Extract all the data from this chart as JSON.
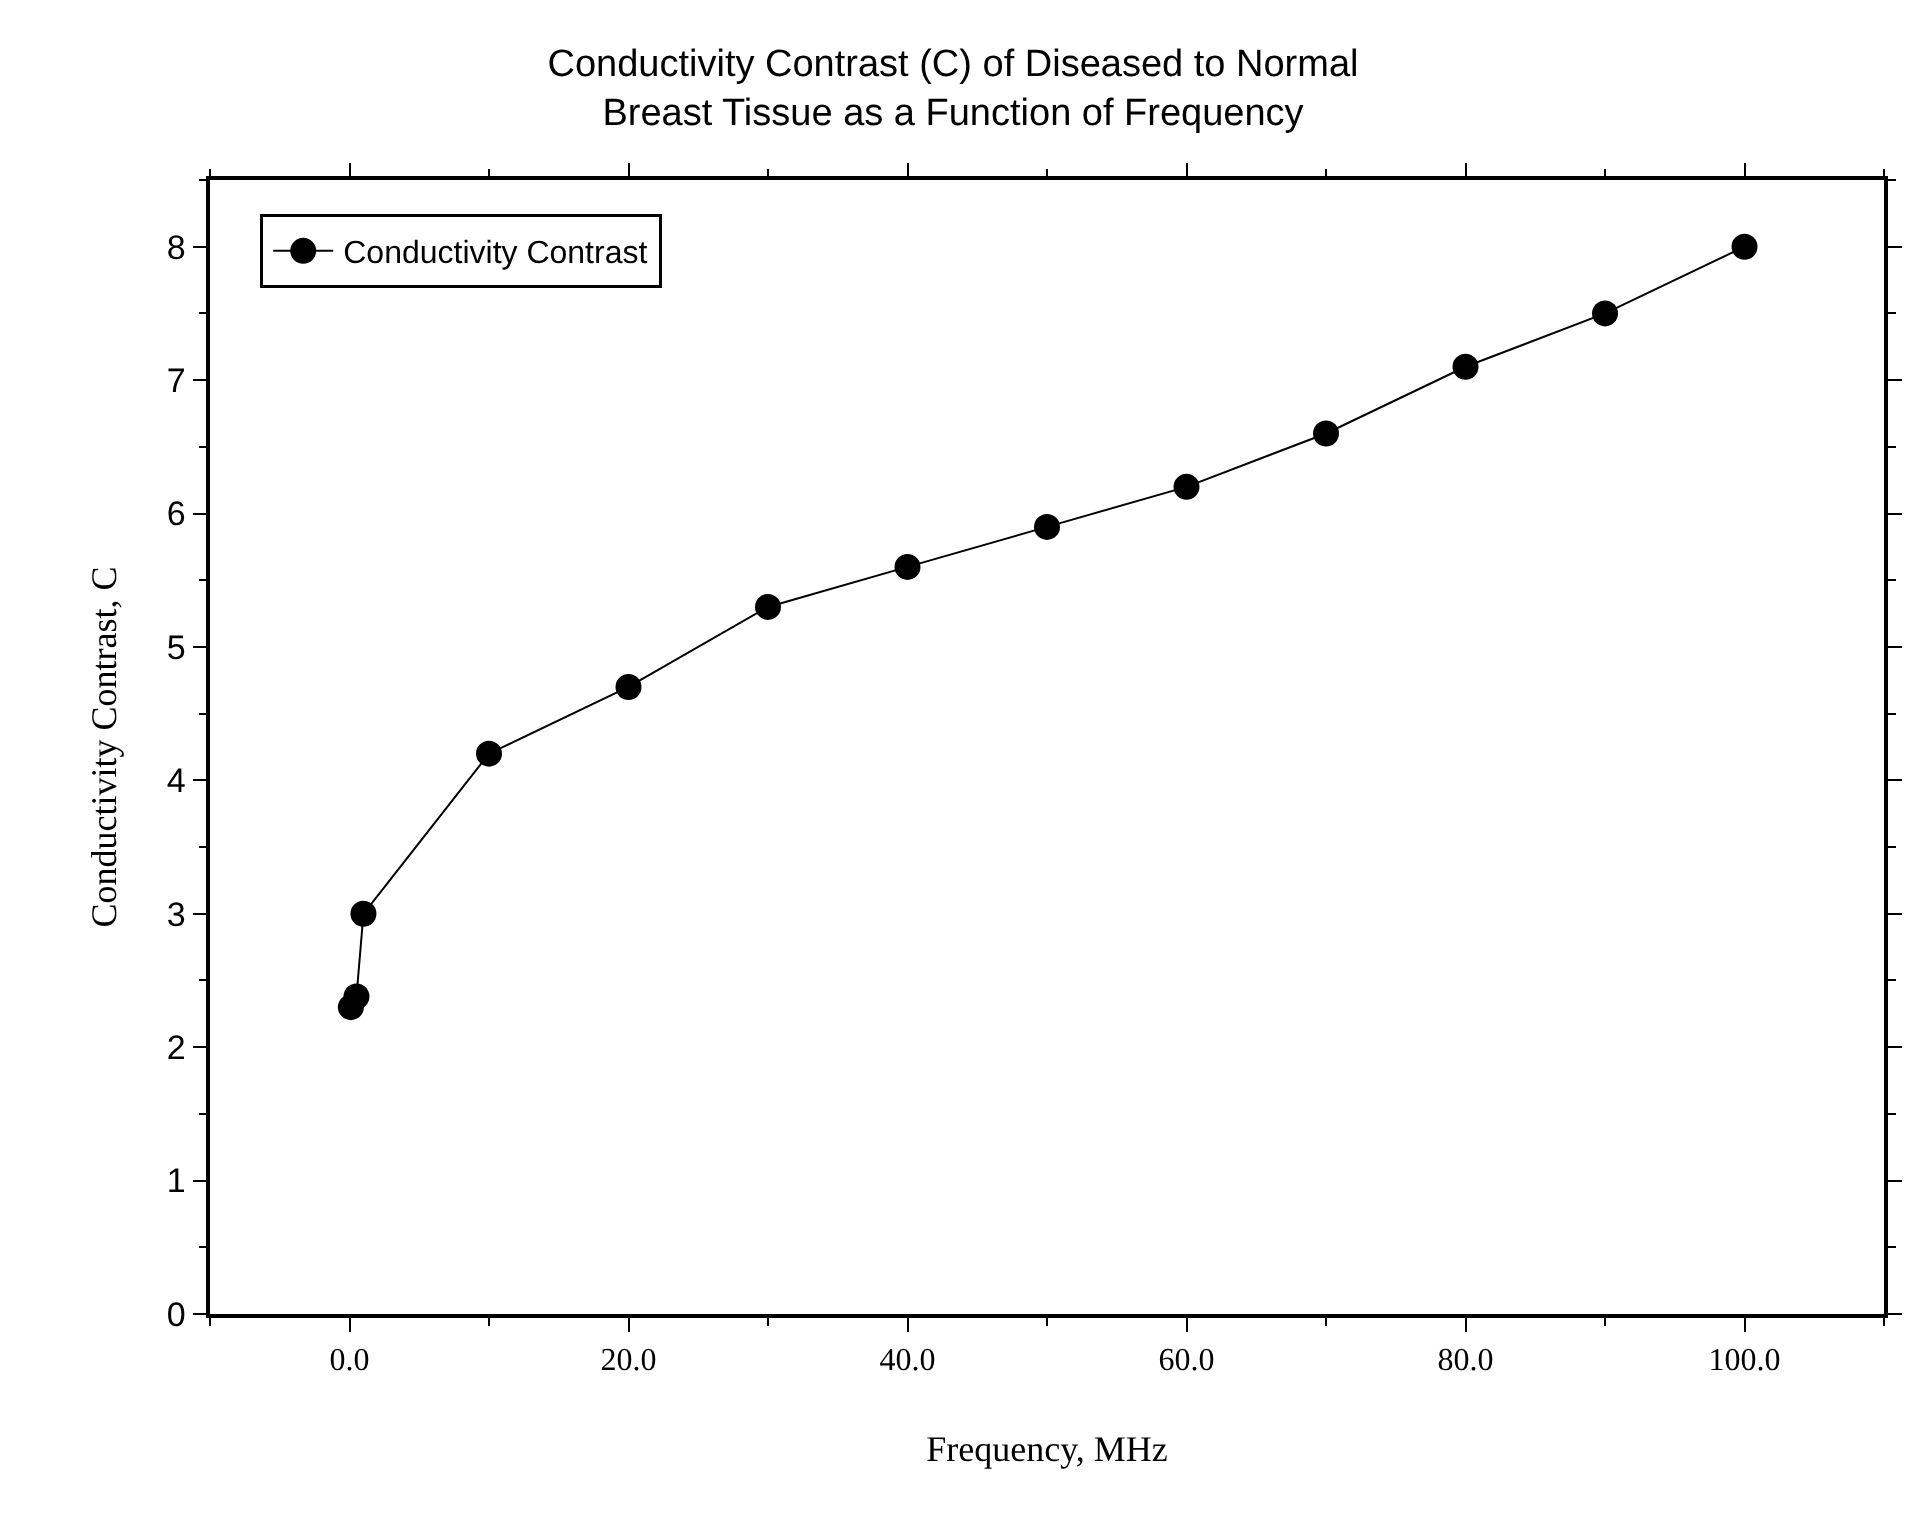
{
  "chart_data": {
    "type": "line",
    "title": "Conductivity Contrast (C) of Diseased to Normal\nBreast Tissue as a Function of Frequency",
    "xlabel": "Frequency, MHz",
    "ylabel": "Conductivity Contrast, C",
    "x": [
      0.1,
      0.5,
      1,
      10,
      20,
      30,
      40,
      50,
      60,
      70,
      80,
      90,
      100
    ],
    "series": [
      {
        "name": "Conductivity Contrast",
        "color": "#000000",
        "values": [
          2.3,
          2.38,
          3.0,
          4.2,
          4.7,
          5.3,
          5.6,
          5.9,
          6.2,
          6.6,
          7.1,
          7.5,
          8.0
        ]
      }
    ],
    "xlim": [
      -10,
      110
    ],
    "ylim": [
      0,
      8.5
    ],
    "xticks": [
      {
        "value": 0,
        "label": "0.0"
      },
      {
        "value": 20,
        "label": "20.0"
      },
      {
        "value": 40,
        "label": "40.0"
      },
      {
        "value": 60,
        "label": "60.0"
      },
      {
        "value": 80,
        "label": "80.0"
      },
      {
        "value": 100,
        "label": "100.0"
      }
    ],
    "yticks": [
      0,
      1,
      2,
      3,
      4,
      5,
      6,
      7,
      8
    ],
    "grid": false,
    "legend": "top left",
    "marker": "circle",
    "line_style": "solid"
  }
}
